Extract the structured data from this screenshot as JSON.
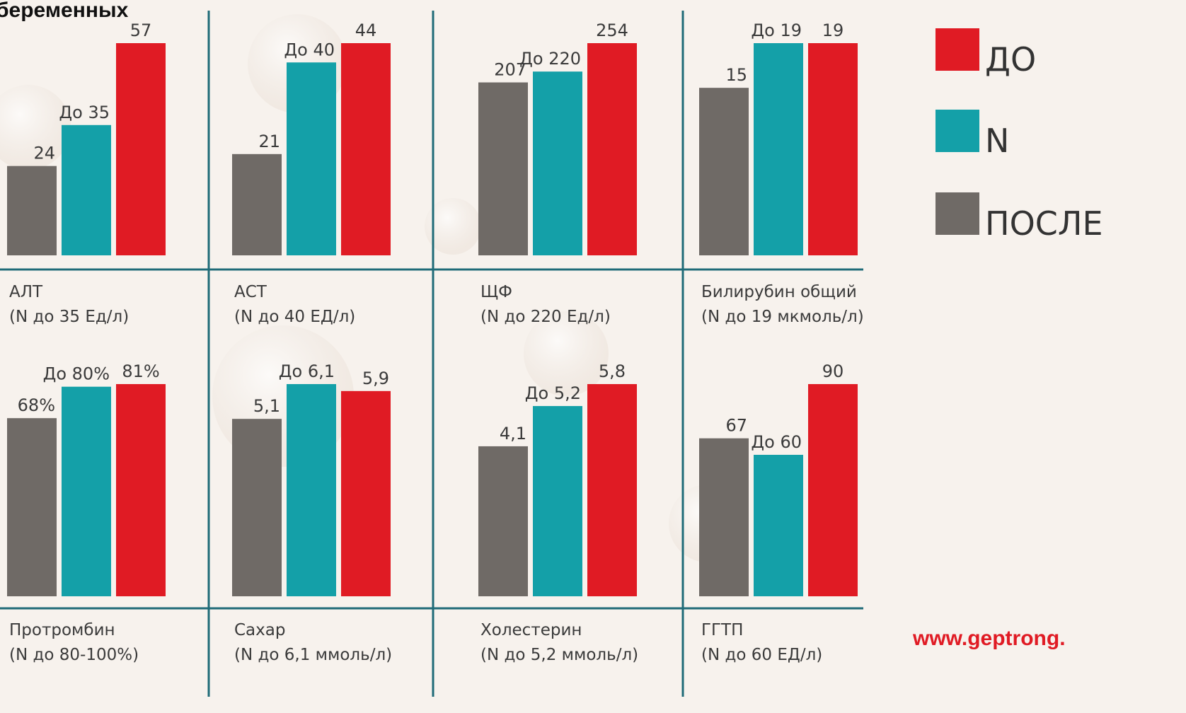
{
  "title": "беременных",
  "legend": {
    "entries": [
      {
        "name": "ПОСЛЕ",
        "color": "#6f6a66"
      },
      {
        "name": "N",
        "color": "#14a0a8"
      },
      {
        "name": "ДО",
        "color": "#e01b24"
      }
    ]
  },
  "chart_data": [
    {
      "type": "bar",
      "title": "АЛТ",
      "subtitle": "(N до 35 Ед/л)",
      "values": [
        24,
        35,
        57
      ],
      "value_labels": [
        "24",
        "До 35",
        "57"
      ]
    },
    {
      "type": "bar",
      "title": "АСТ",
      "subtitle": "(N до 40 ЕД/л)",
      "values": [
        21,
        40,
        44
      ],
      "value_labels": [
        "21",
        "До 40",
        "44"
      ]
    },
    {
      "type": "bar",
      "title": "ЩФ",
      "subtitle": "(N до 220 Ед/л)",
      "values": [
        207,
        220,
        254
      ],
      "value_labels": [
        "207",
        "До 220",
        "254"
      ]
    },
    {
      "type": "bar",
      "title": "Билирубин общий",
      "subtitle": "(N до 19 мкмоль/л)",
      "values": [
        15,
        19,
        19
      ],
      "value_labels": [
        "15",
        "До 19",
        "19"
      ]
    },
    {
      "type": "bar",
      "title": "Протромбин",
      "subtitle": "(N до 80-100%)",
      "values": [
        68,
        80,
        81
      ],
      "value_labels": [
        "68%",
        "До 80%",
        "81%"
      ]
    },
    {
      "type": "bar",
      "title": "Сахар",
      "subtitle": "(N до 6,1 ммоль/л)",
      "values": [
        5.1,
        6.1,
        5.9
      ],
      "value_labels": [
        "5,1",
        "До 6,1",
        "5,9"
      ]
    },
    {
      "type": "bar",
      "title": "Холестерин",
      "subtitle": "(N до 5,2 ммоль/л)",
      "values": [
        4.1,
        5.2,
        5.8
      ],
      "value_labels": [
        "4,1",
        "До 5,2",
        "5,8"
      ]
    },
    {
      "type": "bar",
      "title": "ГГТП",
      "subtitle": "(N до 60 ЕД/л)",
      "values": [
        67,
        60,
        90
      ],
      "value_labels": [
        "67",
        "До 60",
        "90"
      ]
    }
  ],
  "footer": {
    "url": "www.geptrong."
  }
}
